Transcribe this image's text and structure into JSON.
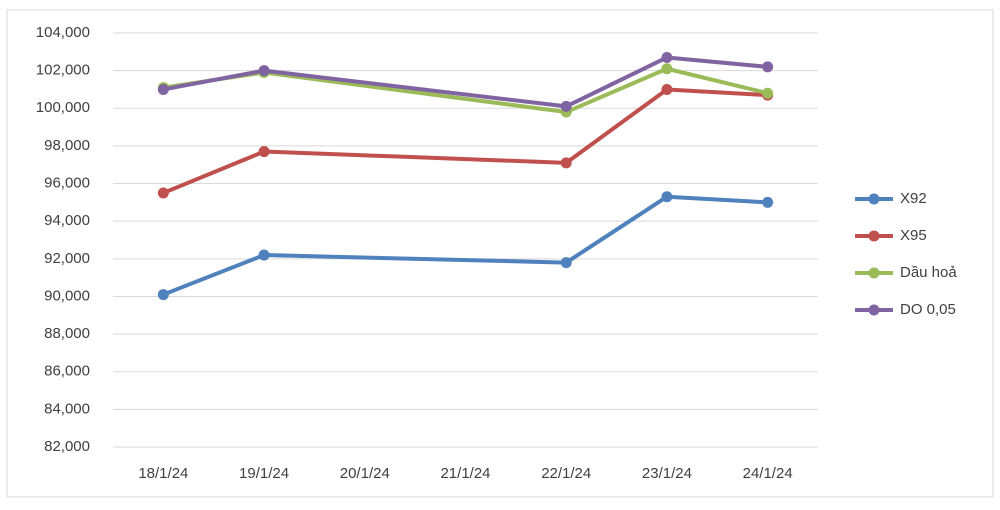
{
  "chart_data": {
    "type": "line",
    "categories": [
      "18/1/24",
      "19/1/24",
      "20/1/24",
      "21/1/24",
      "22/1/24",
      "23/1/24",
      "24/1/24"
    ],
    "series": [
      {
        "name": "X92",
        "color": "#4f81bd",
        "values": [
          90100,
          92200,
          null,
          null,
          91800,
          95300,
          95000
        ]
      },
      {
        "name": "X95",
        "color": "#c0504d",
        "values": [
          95500,
          97700,
          null,
          null,
          97100,
          101000,
          100700
        ]
      },
      {
        "name": "Dầu hoả",
        "color": "#9bbb59",
        "values": [
          101100,
          101900,
          null,
          null,
          99800,
          102100,
          100800
        ]
      },
      {
        "name": "DO 0,05",
        "color": "#8064a2",
        "values": [
          101000,
          102000,
          null,
          null,
          100100,
          102700,
          102200
        ]
      }
    ],
    "ylim": [
      82000,
      104000
    ],
    "yticks": [
      {
        "value": 82000,
        "label": "82,000"
      },
      {
        "value": 84000,
        "label": "84,000"
      },
      {
        "value": 86000,
        "label": "86,000"
      },
      {
        "value": 88000,
        "label": "88,000"
      },
      {
        "value": 90000,
        "label": "90,000"
      },
      {
        "value": 92000,
        "label": "92,000"
      },
      {
        "value": 94000,
        "label": "94,000"
      },
      {
        "value": 96000,
        "label": "96,000"
      },
      {
        "value": 98000,
        "label": "98,000"
      },
      {
        "value": 100000,
        "label": "100,000"
      },
      {
        "value": 102000,
        "label": "102,000"
      },
      {
        "value": 104000,
        "label": "104,000"
      }
    ],
    "grid": true,
    "legend": "right"
  }
}
